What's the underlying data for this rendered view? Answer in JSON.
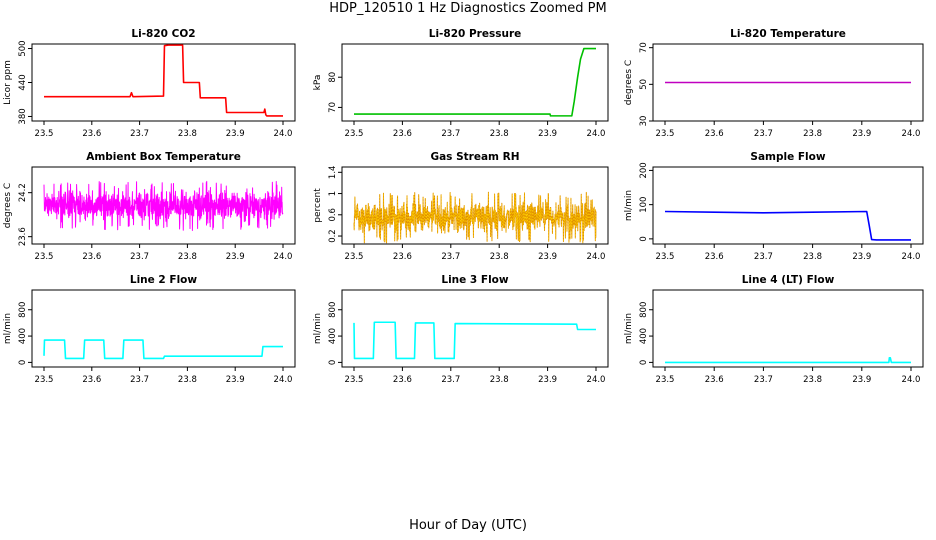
{
  "figure": {
    "title": "HDP_120510  1 Hz Diagnostics Zoomed PM",
    "xlabel": "Hour of Day (UTC)"
  },
  "chart_data": [
    {
      "type": "line",
      "title": "Li-820 CO2",
      "ylabel": "Licor ppm",
      "color": "#ff0000",
      "xlim": [
        23.5,
        24.0
      ],
      "xticks": [
        "23.5",
        "23.6",
        "23.7",
        "23.8",
        "23.9",
        "24.0"
      ],
      "ylim": [
        372,
        508
      ],
      "yticks": [
        380,
        440,
        500
      ],
      "x": [
        23.5,
        23.68,
        23.683,
        23.686,
        23.75,
        23.752,
        23.76,
        23.79,
        23.792,
        23.825,
        23.827,
        23.88,
        23.882,
        23.96,
        23.962,
        23.964,
        23.966,
        24.0
      ],
      "y": [
        415,
        415,
        422,
        415,
        416,
        505,
        506,
        506,
        440,
        440,
        413,
        413,
        387,
        387,
        393,
        383,
        381,
        381
      ]
    },
    {
      "type": "line",
      "title": "Li-820 Pressure",
      "ylabel": "kPa",
      "color": "#00c000",
      "xlim": [
        23.5,
        24.0
      ],
      "xticks": [
        "23.5",
        "23.6",
        "23.7",
        "23.8",
        "23.9",
        "24.0"
      ],
      "ylim": [
        65.5,
        91
      ],
      "yticks": [
        70,
        80
      ],
      "x": [
        23.5,
        23.905,
        23.906,
        23.95,
        23.955,
        23.962,
        23.968,
        23.975,
        23.977,
        24.0
      ],
      "y": [
        67.8,
        67.8,
        67.2,
        67.2,
        72,
        80,
        86,
        89.5,
        89.5,
        89.5
      ]
    },
    {
      "type": "line",
      "title": "Li-820 Temperature",
      "ylabel": "degrees C",
      "color": "#c000c0",
      "xlim": [
        23.5,
        24.0
      ],
      "xticks": [
        "23.5",
        "23.6",
        "23.7",
        "23.8",
        "23.9",
        "24.0"
      ],
      "ylim": [
        30,
        72
      ],
      "yticks": [
        30,
        50,
        70
      ],
      "x": [
        23.5,
        24.0
      ],
      "y": [
        51,
        51
      ]
    },
    {
      "type": "line",
      "title": "Ambient Box Temperature",
      "ylabel": "degrees C",
      "color": "#ff00ff",
      "xlim": [
        23.5,
        24.0
      ],
      "xticks": [
        "23.5",
        "23.6",
        "23.7",
        "23.8",
        "23.9",
        "24.0"
      ],
      "ylim": [
        23.5,
        24.55
      ],
      "yticks": [
        23.6,
        24.2
      ],
      "noise": {
        "mean": 24.02,
        "amp": 0.28,
        "xmax": 24.0
      }
    },
    {
      "type": "line",
      "title": "Gas Stream RH",
      "ylabel": "percent",
      "color": "#e09000",
      "xlim": [
        23.5,
        24.0
      ],
      "xticks": [
        "23.5",
        "23.6",
        "23.7",
        "23.8",
        "23.9",
        "24.0"
      ],
      "ylim": [
        0.05,
        1.5
      ],
      "yticks": [
        0.2,
        0.6,
        1.0,
        1.4
      ],
      "noise": {
        "mean": 0.55,
        "amp": 0.4,
        "xmax": 24.0
      }
    },
    {
      "type": "line",
      "title": "Sample Flow",
      "ylabel": "ml/min",
      "color": "#0000ff",
      "xlim": [
        23.5,
        24.0
      ],
      "xticks": [
        "23.5",
        "23.6",
        "23.7",
        "23.8",
        "23.9",
        "24.0"
      ],
      "ylim": [
        -15,
        210
      ],
      "yticks": [
        0,
        100,
        200
      ],
      "x": [
        23.5,
        23.6,
        23.7,
        23.8,
        23.91,
        23.915,
        23.92,
        23.93,
        24.0
      ],
      "y": [
        80,
        78,
        76,
        78,
        80,
        40,
        -2,
        -3,
        -3
      ]
    },
    {
      "type": "line",
      "title": "Line 2 Flow",
      "ylabel": "ml/min",
      "color": "#00ffff",
      "xlim": [
        23.5,
        24.0
      ],
      "xticks": [
        "23.5",
        "23.6",
        "23.7",
        "23.8",
        "23.9",
        "24.0"
      ],
      "ylim": [
        -70,
        1100
      ],
      "yticks": [
        0,
        400,
        800
      ],
      "x": [
        23.5,
        23.501,
        23.543,
        23.545,
        23.583,
        23.585,
        23.625,
        23.627,
        23.665,
        23.667,
        23.707,
        23.709,
        23.75,
        23.752,
        23.956,
        23.958,
        24.0
      ],
      "y": [
        100,
        340,
        340,
        60,
        60,
        340,
        340,
        60,
        60,
        340,
        340,
        60,
        60,
        95,
        95,
        240,
        240
      ]
    },
    {
      "type": "line",
      "title": "Line 3 Flow",
      "ylabel": "ml/min",
      "color": "#00ffff",
      "xlim": [
        23.5,
        24.0
      ],
      "xticks": [
        "23.5",
        "23.6",
        "23.7",
        "23.8",
        "23.9",
        "24.0"
      ],
      "ylim": [
        -70,
        1100
      ],
      "yticks": [
        0,
        400,
        800
      ],
      "x": [
        23.5,
        23.501,
        23.503,
        23.54,
        23.542,
        23.585,
        23.587,
        23.625,
        23.627,
        23.665,
        23.667,
        23.707,
        23.709,
        23.96,
        23.962,
        24.0
      ],
      "y": [
        600,
        60,
        60,
        60,
        610,
        610,
        60,
        60,
        600,
        600,
        60,
        60,
        590,
        580,
        500,
        500
      ]
    },
    {
      "type": "line",
      "title": "Line 4 (LT) Flow",
      "ylabel": "ml/min",
      "color": "#00ffff",
      "xlim": [
        23.5,
        24.0
      ],
      "xticks": [
        "23.5",
        "23.6",
        "23.7",
        "23.8",
        "23.9",
        "24.0"
      ],
      "ylim": [
        -70,
        1100
      ],
      "yticks": [
        0,
        400,
        800
      ],
      "x": [
        23.5,
        23.955,
        23.956,
        23.958,
        23.96,
        24.0
      ],
      "y": [
        0,
        0,
        70,
        70,
        0,
        0
      ]
    }
  ]
}
